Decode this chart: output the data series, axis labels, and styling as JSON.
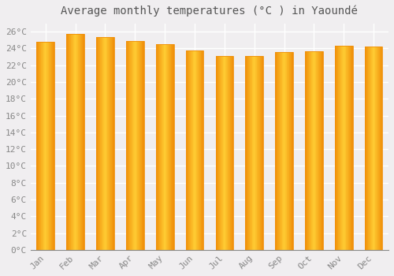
{
  "title": "Average monthly temperatures (°C ) in Yaoundé",
  "months": [
    "Jan",
    "Feb",
    "Mar",
    "Apr",
    "May",
    "Jun",
    "Jul",
    "Aug",
    "Sep",
    "Oct",
    "Nov",
    "Dec"
  ],
  "values": [
    24.8,
    25.7,
    25.4,
    24.9,
    24.5,
    23.8,
    23.1,
    23.1,
    23.6,
    23.7,
    24.3,
    24.2
  ],
  "bar_color_center": "#FFCC33",
  "bar_color_edge": "#F0900A",
  "background_color": "#F0EEF0",
  "plot_bg_color": "#F0EEF0",
  "grid_color": "#FFFFFF",
  "ylim": [
    0,
    27
  ],
  "ytick_step": 2,
  "title_fontsize": 10,
  "tick_fontsize": 8,
  "tick_color": "#888888",
  "bar_width": 0.6,
  "fig_width": 5.0,
  "fig_height": 3.5,
  "dpi": 100
}
